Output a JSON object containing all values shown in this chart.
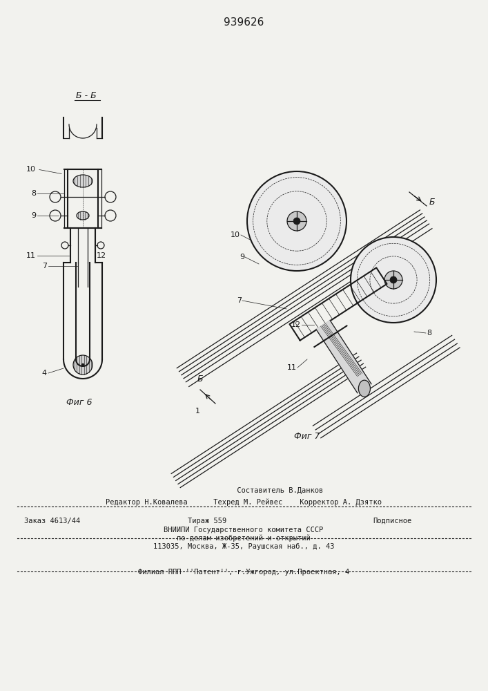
{
  "patent_number": "939626",
  "bg": "#f2f2ee",
  "lc": "#1a1a1a",
  "fig6_caption": "Фиг 6",
  "fig7_caption": "Фиг 7",
  "footer_line0": "                 Составитель В.Данков",
  "footer_line1": "Редактор Н.Ковалева      Техред М. Рейвес    Корректор А. Дзятко",
  "footer_line2a": "Заказ 4613/44",
  "footer_line2b": "Тираж 559",
  "footer_line2c": "Подписное",
  "footer_line3": "ВНИИПИ Государственного комитета СССР",
  "footer_line4": "по делам изобретений и открытий",
  "footer_line5": "113035, Москва, Ж-35, Раушская наб., д. 43",
  "footer_line6": "Филиал ППП ''Патент'', г.Ужгород, ул.Проектная, 4"
}
